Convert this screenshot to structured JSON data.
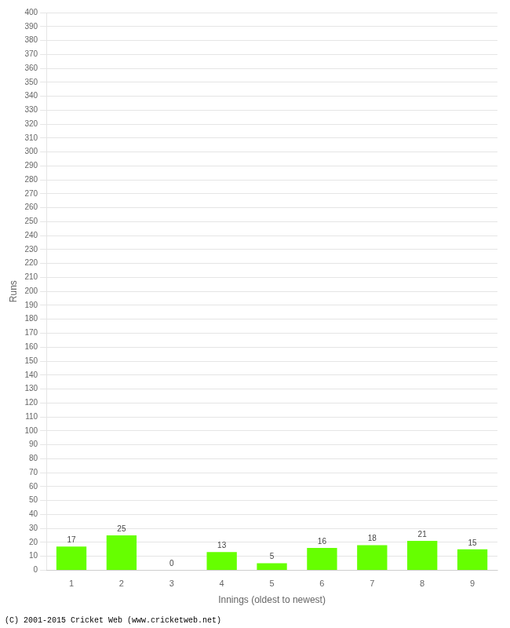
{
  "chart_data": {
    "type": "bar",
    "categories": [
      "1",
      "2",
      "3",
      "4",
      "5",
      "6",
      "7",
      "8",
      "9"
    ],
    "values": [
      17,
      25,
      0,
      13,
      5,
      16,
      18,
      21,
      15
    ],
    "color": "#66ff00",
    "xlabel": "Innings (oldest to newest)",
    "ylabel": "Runs",
    "annotations": [
      "(C) 2001-2015 Cricket Web (www.cricketweb.net)"
    ],
    "ylim": [
      0,
      400
    ],
    "yticks": [
      0,
      10,
      20,
      30,
      40,
      50,
      60,
      70,
      80,
      90,
      100,
      110,
      120,
      130,
      140,
      150,
      160,
      170,
      180,
      190,
      200,
      210,
      220,
      230,
      240,
      250,
      260,
      270,
      280,
      290,
      300,
      310,
      320,
      330,
      340,
      350,
      360,
      370,
      380,
      390,
      400
    ],
    "grid": true,
    "data_labels": true
  }
}
